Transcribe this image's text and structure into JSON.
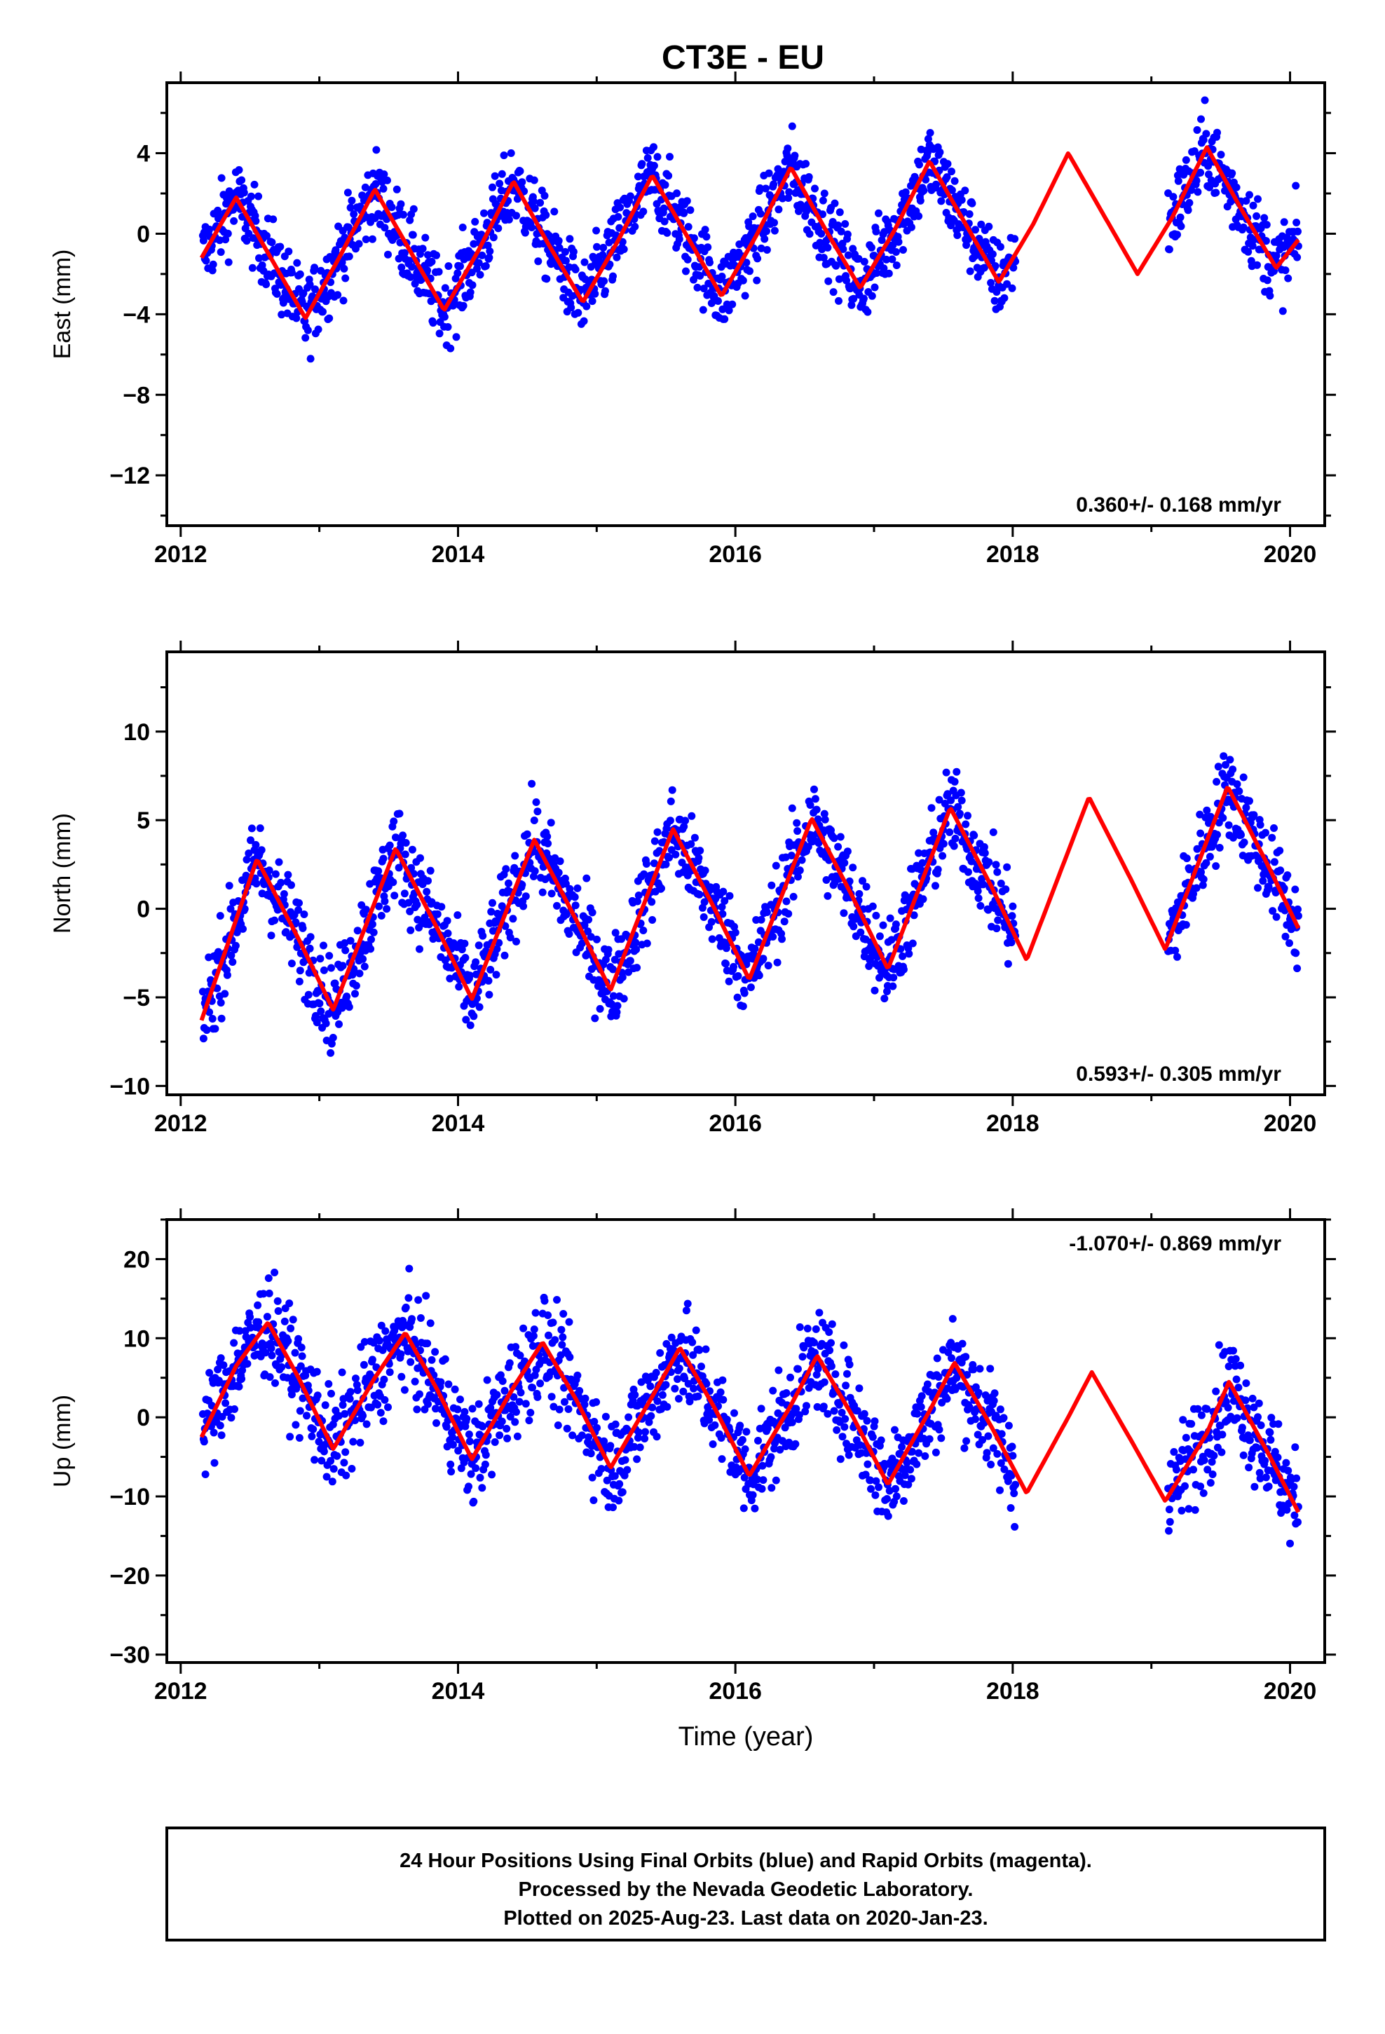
{
  "title": "CT3E - EU",
  "footer": {
    "lines": [
      "24 Hour Positions Using Final Orbits (blue) and Rapid Orbits (magenta).",
      "Processed by the Nevada Geodetic Laboratory.",
      "Plotted on 2025-Aug-23. Last data on 2020-Jan-23."
    ]
  },
  "colors": {
    "data": "#0000ff",
    "model": "#ff0000",
    "frame": "#000000"
  },
  "chart_data": [
    {
      "type": "scatter",
      "ylabel": "East (mm)",
      "xlabel": "",
      "xlim": [
        2011.9,
        2020.25
      ],
      "ylim": [
        -14.5,
        7.5
      ],
      "xticks": [
        2012,
        2014,
        2016,
        2018,
        2020
      ],
      "yticks": [
        4,
        0,
        -4,
        -8,
        -12
      ],
      "rate_text": "0.360+/- 0.168 mm/yr",
      "rate_position": "bottom-right",
      "data_range": [
        2012.16,
        2020.06
      ],
      "gaps": [
        [
          2018.02,
          2019.12
        ]
      ],
      "model": {
        "series_name": "",
        "x": [
          2012.15,
          2012.4,
          2012.65,
          2012.9,
          2013.15,
          2013.4,
          2013.65,
          2013.9,
          2014.15,
          2014.4,
          2014.65,
          2014.9,
          2015.15,
          2015.4,
          2015.65,
          2015.9,
          2016.15,
          2016.4,
          2016.65,
          2016.9,
          2017.15,
          2017.4,
          2017.65,
          2017.9,
          2018.15,
          2018.4,
          2018.65,
          2018.9,
          2019.15,
          2019.4,
          2019.65,
          2019.9,
          2020.06
        ],
        "y": [
          -1.2,
          1.8,
          -1.2,
          -4.2,
          -1.1,
          2.2,
          -0.8,
          -3.8,
          -0.8,
          2.6,
          -0.5,
          -3.4,
          -0.4,
          2.9,
          -0.1,
          -3.1,
          -0.1,
          3.3,
          0.2,
          -2.7,
          0.2,
          3.6,
          0.6,
          -2.4,
          0.5,
          4.0,
          1.0,
          -2.0,
          0.8,
          4.3,
          1.2,
          -1.7,
          -0.3
        ]
      }
    },
    {
      "type": "scatter",
      "ylabel": "North (mm)",
      "xlabel": "",
      "xlim": [
        2011.9,
        2020.25
      ],
      "ylim": [
        -10.5,
        14.5
      ],
      "xticks": [
        2012,
        2014,
        2016,
        2018,
        2020
      ],
      "yticks": [
        10,
        5,
        0,
        -5,
        -10
      ],
      "rate_text": "0.593+/- 0.305 mm/yr",
      "rate_position": "bottom-right",
      "data_range": [
        2012.16,
        2020.06
      ],
      "gaps": [
        [
          2018.02,
          2019.12
        ]
      ],
      "model": {
        "series_name": "",
        "x": [
          2012.15,
          2012.55,
          2012.85,
          2013.1,
          2013.55,
          2013.85,
          2014.1,
          2014.55,
          2014.85,
          2015.1,
          2015.55,
          2015.85,
          2016.1,
          2016.55,
          2016.85,
          2017.1,
          2017.55,
          2017.85,
          2018.1,
          2018.55,
          2018.85,
          2019.1,
          2019.55,
          2019.85,
          2020.06
        ],
        "y": [
          -6.3,
          2.8,
          -1.7,
          -5.7,
          3.4,
          -1.1,
          -5.1,
          3.9,
          -0.6,
          -4.6,
          4.5,
          0.0,
          -4.0,
          5.1,
          0.6,
          -3.4,
          5.7,
          1.2,
          -2.9,
          6.3,
          1.7,
          -2.3,
          6.9,
          2.3,
          -1.1
        ]
      }
    },
    {
      "type": "scatter",
      "ylabel": "Up (mm)",
      "xlabel": "Time (year)",
      "xlim": [
        2011.9,
        2020.25
      ],
      "ylim": [
        -31,
        25
      ],
      "xticks": [
        2012,
        2014,
        2016,
        2018,
        2020
      ],
      "yticks": [
        20,
        10,
        0,
        -10,
        -20,
        -30
      ],
      "rate_text": "-1.070+/- 0.869 mm/yr",
      "rate_position": "top-right",
      "data_range": [
        2012.16,
        2020.06
      ],
      "gaps": [
        [
          2018.02,
          2019.12
        ]
      ],
      "model": {
        "series_name": "",
        "x": [
          2012.15,
          2012.4,
          2012.63,
          2012.85,
          2013.1,
          2013.4,
          2013.62,
          2013.85,
          2014.1,
          2014.4,
          2014.61,
          2014.85,
          2015.1,
          2015.4,
          2015.6,
          2015.85,
          2016.1,
          2016.4,
          2016.59,
          2016.85,
          2017.1,
          2017.4,
          2017.58,
          2017.85,
          2018.1,
          2018.4,
          2018.57,
          2018.85,
          2019.1,
          2019.4,
          2019.56,
          2019.85,
          2020.06
        ],
        "y": [
          -2.5,
          6.5,
          12.0,
          5.0,
          -4.0,
          5.0,
          10.7,
          3.5,
          -5.3,
          3.8,
          9.5,
          2.3,
          -6.4,
          2.6,
          8.8,
          1.2,
          -7.4,
          1.5,
          7.8,
          0.0,
          -8.5,
          0.8,
          6.9,
          -1.3,
          -9.6,
          0.0,
          5.7,
          -2.8,
          -10.6,
          -2.0,
          4.5,
          -4.8,
          -12.0
        ]
      }
    }
  ]
}
